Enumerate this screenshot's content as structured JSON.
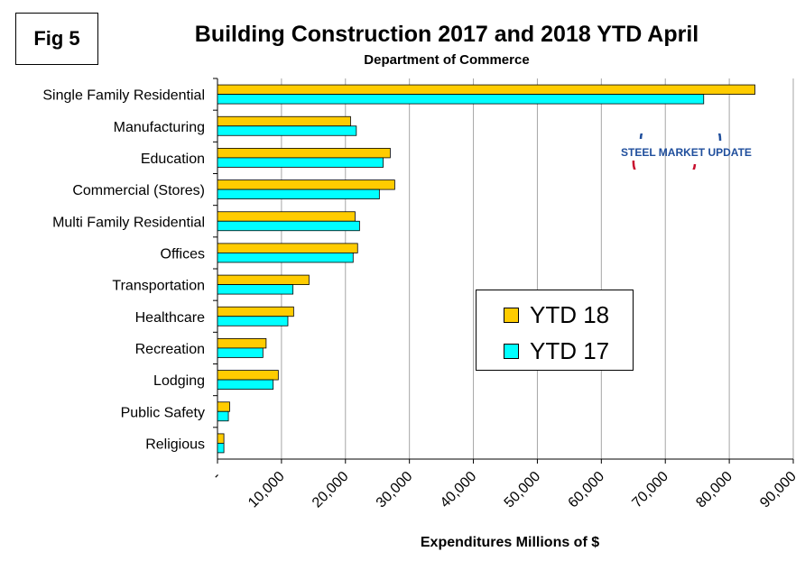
{
  "figure_label": "Fig 5",
  "brand": {
    "part1": "STEEL",
    "part2": " MARKET UPDATE",
    "logo_icon": "steel-market-update-logo"
  },
  "colors": {
    "ytd18": "#FFCC00",
    "ytd17": "#00FFFF",
    "grid": "#A6A6A6",
    "logo_red": "#C8102E",
    "logo_blue": "#1F4E9C"
  },
  "chart_data": {
    "type": "bar",
    "orientation": "horizontal",
    "title": "Building Construction 2017 and 2018 YTD April",
    "subtitle": "Department of Commerce",
    "xlabel": "Expenditures Millions of $",
    "ylabel": "",
    "xlim": [
      0,
      90000
    ],
    "x_ticks": [
      0,
      10000,
      20000,
      30000,
      40000,
      50000,
      60000,
      70000,
      80000,
      90000
    ],
    "x_tick_labels": [
      "-",
      "10,000",
      "20,000",
      "30,000",
      "40,000",
      "50,000",
      "60,000",
      "70,000",
      "80,000",
      "90,000"
    ],
    "grid": true,
    "legend_position": "center-right",
    "categories": [
      "Single Family Residential",
      "Manufacturing",
      "Education",
      "Commercial (Stores)",
      "Multi Family Residential",
      "Offices",
      "Transportation",
      "Healthcare",
      "Recreation",
      "Lodging",
      "Public Safety",
      "Religious"
    ],
    "series": [
      {
        "name": "YTD 18",
        "values": [
          84000,
          20800,
          27000,
          27700,
          21500,
          21900,
          14300,
          11900,
          7600,
          9500,
          1900,
          1000
        ]
      },
      {
        "name": "YTD 17",
        "values": [
          76000,
          21700,
          25900,
          25300,
          22200,
          21200,
          11800,
          11000,
          7100,
          8700,
          1700,
          1000
        ]
      }
    ]
  }
}
